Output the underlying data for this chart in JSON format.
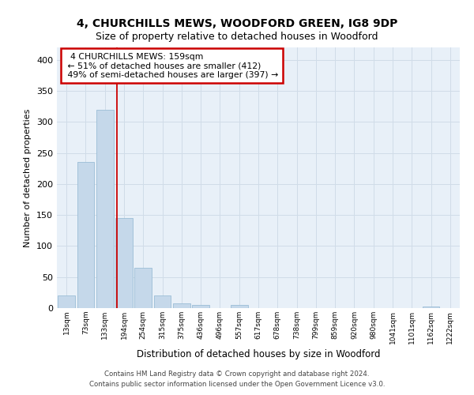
{
  "title": "4, CHURCHILLS MEWS, WOODFORD GREEN, IG8 9DP",
  "subtitle": "Size of property relative to detached houses in Woodford",
  "xlabel": "Distribution of detached houses by size in Woodford",
  "ylabel": "Number of detached properties",
  "footnote1": "Contains HM Land Registry data © Crown copyright and database right 2024.",
  "footnote2": "Contains public sector information licensed under the Open Government Licence v3.0.",
  "bar_color": "#c5d8ea",
  "bar_edge_color": "#9bbdd6",
  "grid_color": "#d0dce8",
  "bg_color": "#e8f0f8",
  "annotation_box_color": "#cc0000",
  "vline_color": "#cc0000",
  "categories": [
    "13sqm",
    "73sqm",
    "133sqm",
    "194sqm",
    "254sqm",
    "315sqm",
    "375sqm",
    "436sqm",
    "496sqm",
    "557sqm",
    "617sqm",
    "678sqm",
    "738sqm",
    "799sqm",
    "859sqm",
    "920sqm",
    "980sqm",
    "1041sqm",
    "1101sqm",
    "1162sqm",
    "1222sqm"
  ],
  "values": [
    20,
    235,
    320,
    145,
    65,
    20,
    8,
    5,
    0,
    5,
    0,
    0,
    0,
    0,
    0,
    0,
    0,
    0,
    0,
    3,
    0
  ],
  "vline_position": 2.62,
  "annotation_text": "  4 CHURCHILLS MEWS: 159sqm  \n ← 51% of detached houses are smaller (412)\n 49% of semi-detached houses are larger (397) →",
  "ylim": [
    0,
    420
  ],
  "yticks": [
    0,
    50,
    100,
    150,
    200,
    250,
    300,
    350,
    400
  ],
  "title_fontsize": 10,
  "subtitle_fontsize": 9,
  "footnote_fontsize": 6.2,
  "annotation_fontsize": 7.8,
  "ylabel_fontsize": 8,
  "xlabel_fontsize": 8.5
}
